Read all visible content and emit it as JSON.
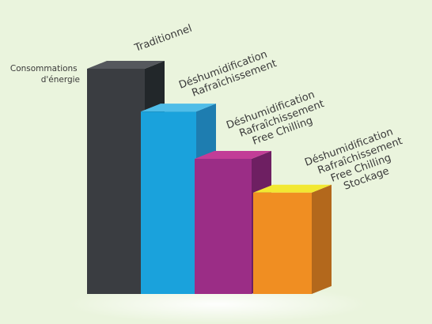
{
  "chart_data": {
    "type": "bar",
    "ylabel": [
      "Consommations",
      "d'énergie"
    ],
    "categories": [
      {
        "lines": [
          "Traditionnel"
        ]
      },
      {
        "lines": [
          "Déshumidification",
          "Rafraîchissement"
        ]
      },
      {
        "lines": [
          "Déshumidification",
          "Rafraîchissement",
          "Free Chilling"
        ]
      },
      {
        "lines": [
          "Déshumidification",
          "Rafraîchissement",
          "Free Chilling",
          "Stockage"
        ]
      }
    ],
    "values": [
      100,
      81,
      60,
      45
    ],
    "ylim": [
      0,
      100
    ],
    "grid": false,
    "legend": "none",
    "colors": {
      "bars": [
        "#3a3d41",
        "#1aa2dc",
        "#9b2d86",
        "#f08e22"
      ],
      "tops": [
        "#55585d",
        "#4fbde8",
        "#c23d97",
        "#f2e832"
      ],
      "sides": [
        "#22272a",
        "#1e7db0",
        "#6e1f62",
        "#b3681c"
      ],
      "background": "#eaf4dd"
    }
  }
}
